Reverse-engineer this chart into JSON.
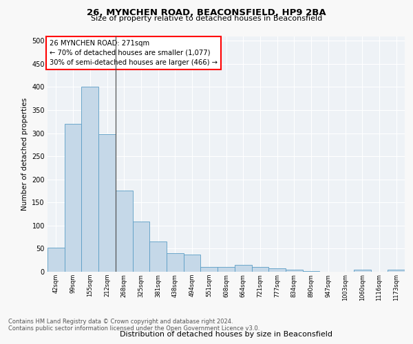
{
  "title1": "26, MYNCHEN ROAD, BEACONSFIELD, HP9 2BA",
  "title2": "Size of property relative to detached houses in Beaconsfield",
  "xlabel": "Distribution of detached houses by size in Beaconsfield",
  "ylabel": "Number of detached properties",
  "categories": [
    "42sqm",
    "99sqm",
    "155sqm",
    "212sqm",
    "268sqm",
    "325sqm",
    "381sqm",
    "438sqm",
    "494sqm",
    "551sqm",
    "608sqm",
    "664sqm",
    "721sqm",
    "777sqm",
    "834sqm",
    "890sqm",
    "947sqm",
    "1003sqm",
    "1060sqm",
    "1116sqm",
    "1173sqm"
  ],
  "values": [
    52,
    320,
    400,
    298,
    176,
    108,
    65,
    40,
    37,
    11,
    10,
    15,
    10,
    8,
    5,
    2,
    0.5,
    0.5,
    5,
    0.5,
    5
  ],
  "bar_color": "#c5d8e8",
  "bar_edge_color": "#5a9dc5",
  "subject_bar_index": 4,
  "annotation_text": "26 MYNCHEN ROAD: 271sqm\n← 70% of detached houses are smaller (1,077)\n30% of semi-detached houses are larger (466) →",
  "ylim": [
    0,
    510
  ],
  "yticks": [
    0,
    50,
    100,
    150,
    200,
    250,
    300,
    350,
    400,
    450,
    500
  ],
  "footer1": "Contains HM Land Registry data © Crown copyright and database right 2024.",
  "footer2": "Contains public sector information licensed under the Open Government Licence v3.0.",
  "bg_color": "#f8f8f8",
  "plot_bg_color": "#eef2f6"
}
